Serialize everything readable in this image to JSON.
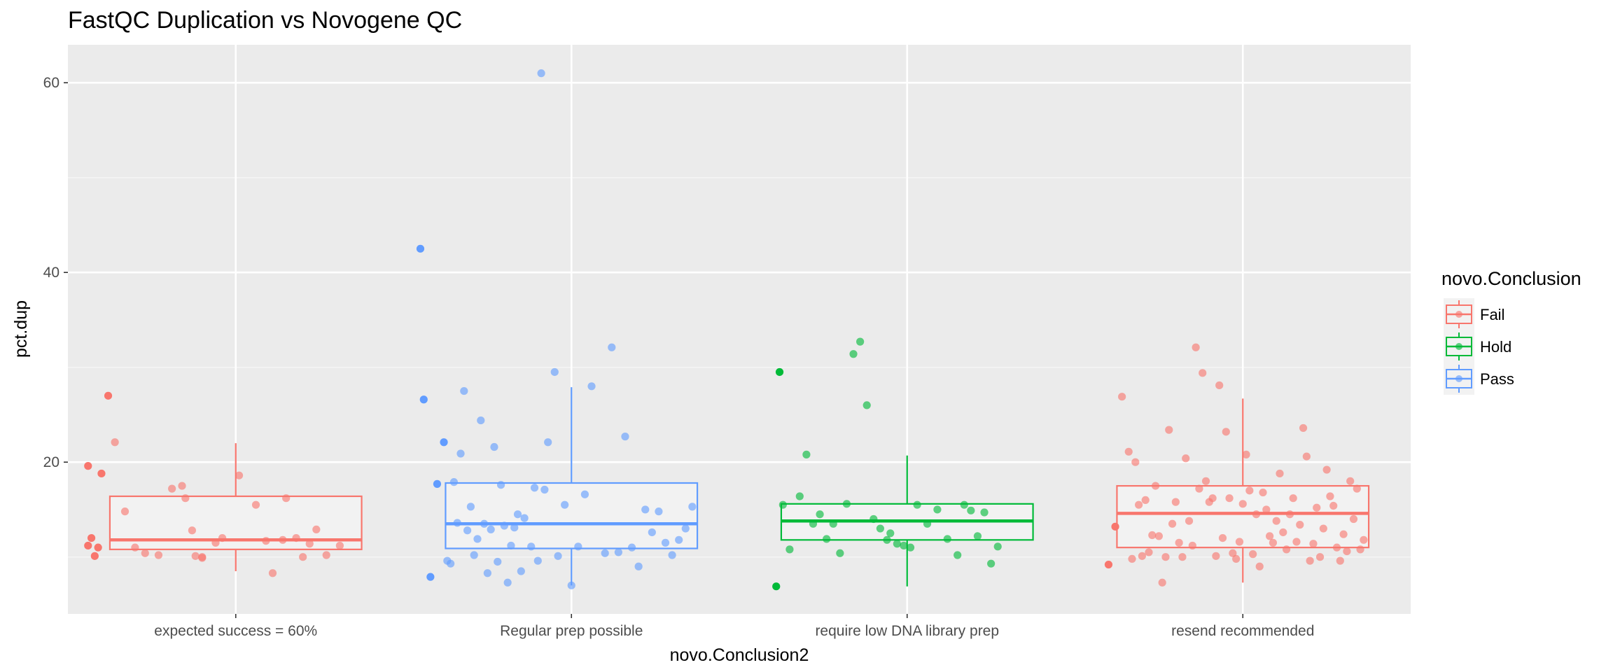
{
  "chart_data": {
    "type": "box",
    "title": "FastQC Duplication vs Novogene QC",
    "xlabel": "novo.Conclusion2",
    "ylabel": "pct.dup",
    "categories": [
      "expected success = 60%",
      "Regular prep possible",
      "require low DNA library prep",
      "resend recommended"
    ],
    "y_ticks": [
      20,
      40,
      60
    ],
    "ylim": [
      4,
      64
    ],
    "grid": true,
    "legend_position": "right",
    "legend": {
      "title": "novo.Conclusion",
      "entries": [
        {
          "name": "Fail",
          "color": "#F8766D"
        },
        {
          "name": "Hold",
          "color": "#00BA38"
        },
        {
          "name": "Pass",
          "color": "#619CFF"
        }
      ]
    },
    "boxes": [
      {
        "category": "expected success = 60%",
        "group": "Fail",
        "color": "#F8766D",
        "q1": 10.8,
        "median": 11.8,
        "q3": 16.4,
        "whisker_low": 8.5,
        "whisker_high": 22.0
      },
      {
        "category": "Regular prep possible",
        "group": "Pass",
        "color": "#619CFF",
        "q1": 10.9,
        "median": 13.5,
        "q3": 17.8,
        "whisker_low": 7.0,
        "whisker_high": 27.9
      },
      {
        "category": "require low DNA library prep",
        "group": "Hold",
        "color": "#00BA38",
        "q1": 11.8,
        "median": 13.8,
        "q3": 15.6,
        "whisker_low": 6.9,
        "whisker_high": 20.7
      },
      {
        "category": "resend recommended",
        "group": "Fail",
        "color": "#F8766D",
        "q1": 11.0,
        "median": 14.6,
        "q3": 17.5,
        "whisker_low": 7.3,
        "whisker_high": 26.7
      }
    ],
    "points": [
      {
        "category": "expected success = 60%",
        "group": "Fail",
        "color": "#F8766D",
        "jitter": [
          -0.44,
          -0.44,
          -0.43,
          -0.42,
          -0.41,
          -0.4,
          -0.38,
          -0.36,
          -0.33,
          -0.3,
          -0.27,
          -0.23,
          -0.19,
          -0.16,
          -0.15,
          -0.13,
          -0.12,
          -0.1,
          -0.1,
          -0.06,
          -0.04,
          0.01,
          0.06,
          0.09,
          0.11,
          0.14,
          0.15,
          0.18,
          0.2,
          0.22,
          0.24,
          0.27,
          0.31
        ],
        "y": [
          19.6,
          11.2,
          12.0,
          10.1,
          11.0,
          18.8,
          27.0,
          22.1,
          14.8,
          11.0,
          10.4,
          10.2,
          17.2,
          17.5,
          16.2,
          12.8,
          10.1,
          10.0,
          9.9,
          11.5,
          12.0,
          18.6,
          15.5,
          11.7,
          8.3,
          11.8,
          16.2,
          12.0,
          10.0,
          11.4,
          12.9,
          10.2,
          11.2
        ]
      },
      {
        "category": "Regular prep possible",
        "group": "Pass",
        "color": "#619CFF",
        "jitter": [
          -0.45,
          -0.44,
          -0.42,
          -0.4,
          -0.38,
          -0.37,
          -0.36,
          -0.35,
          -0.34,
          -0.33,
          -0.32,
          -0.31,
          -0.3,
          -0.29,
          -0.28,
          -0.27,
          -0.26,
          -0.25,
          -0.24,
          -0.23,
          -0.22,
          -0.21,
          -0.2,
          -0.19,
          -0.18,
          -0.17,
          -0.16,
          -0.15,
          -0.14,
          -0.12,
          -0.11,
          -0.1,
          -0.09,
          -0.08,
          -0.07,
          -0.05,
          -0.04,
          -0.02,
          0.0,
          0.02,
          0.04,
          0.06,
          0.1,
          0.12,
          0.14,
          0.16,
          0.18,
          0.2,
          0.22,
          0.24,
          0.26,
          0.28,
          0.3,
          0.32,
          0.34,
          0.36
        ],
        "y": [
          42.5,
          26.6,
          7.9,
          17.7,
          22.1,
          9.6,
          9.3,
          17.9,
          13.6,
          20.9,
          27.5,
          12.8,
          15.3,
          10.2,
          11.9,
          24.4,
          13.5,
          8.3,
          12.9,
          21.6,
          9.5,
          17.6,
          13.3,
          7.3,
          11.2,
          13.1,
          14.5,
          8.5,
          14.1,
          11.1,
          17.3,
          9.6,
          61.0,
          17.1,
          22.1,
          29.5,
          10.1,
          15.5,
          7.0,
          11.1,
          16.6,
          28.0,
          10.4,
          32.1,
          10.5,
          22.7,
          11.0,
          9.0,
          15.0,
          12.6,
          14.8,
          11.5,
          10.2,
          11.8,
          13.0,
          15.3
        ]
      },
      {
        "category": "require low DNA library prep",
        "group": "Hold",
        "color": "#00BA38",
        "jitter": [
          -0.39,
          -0.38,
          -0.37,
          -0.35,
          -0.32,
          -0.3,
          -0.28,
          -0.26,
          -0.24,
          -0.22,
          -0.2,
          -0.18,
          -0.16,
          -0.14,
          -0.12,
          -0.1,
          -0.08,
          -0.06,
          -0.05,
          -0.03,
          -0.01,
          0.01,
          0.03,
          0.06,
          0.09,
          0.12,
          0.15,
          0.17,
          0.19,
          0.21,
          0.23,
          0.25,
          0.27
        ],
        "y": [
          6.9,
          29.5,
          15.5,
          10.8,
          16.4,
          20.8,
          13.5,
          14.5,
          11.9,
          13.5,
          10.4,
          15.6,
          31.4,
          32.7,
          26.0,
          14.0,
          13.0,
          11.8,
          12.5,
          11.4,
          11.2,
          11.0,
          15.5,
          13.5,
          15.0,
          11.9,
          10.2,
          15.5,
          14.9,
          12.2,
          14.7,
          9.3,
          11.1
        ]
      },
      {
        "category": "resend recommended",
        "group": "Fail",
        "color": "#F8766D",
        "jitter": [
          -0.4,
          -0.38,
          -0.36,
          -0.34,
          -0.33,
          -0.32,
          -0.31,
          -0.3,
          -0.29,
          -0.28,
          -0.27,
          -0.26,
          -0.25,
          -0.24,
          -0.23,
          -0.22,
          -0.21,
          -0.2,
          -0.19,
          -0.18,
          -0.17,
          -0.16,
          -0.15,
          -0.14,
          -0.13,
          -0.12,
          -0.11,
          -0.1,
          -0.09,
          -0.08,
          -0.07,
          -0.06,
          -0.05,
          -0.04,
          -0.03,
          -0.02,
          -0.01,
          0.0,
          0.01,
          0.02,
          0.03,
          0.04,
          0.05,
          0.06,
          0.07,
          0.08,
          0.09,
          0.1,
          0.11,
          0.12,
          0.13,
          0.14,
          0.15,
          0.16,
          0.17,
          0.18,
          0.19,
          0.2,
          0.21,
          0.22,
          0.23,
          0.24,
          0.25,
          0.26,
          0.27,
          0.28,
          0.29,
          0.3,
          0.31,
          0.32,
          0.33,
          0.34,
          0.35,
          0.36
        ],
        "y": [
          9.2,
          13.2,
          26.9,
          21.1,
          9.8,
          20.0,
          15.5,
          10.1,
          16.0,
          10.5,
          12.3,
          17.5,
          12.2,
          7.3,
          10.0,
          23.4,
          13.5,
          15.8,
          11.5,
          10.0,
          20.4,
          13.8,
          11.2,
          32.1,
          17.2,
          29.4,
          18.0,
          15.8,
          16.2,
          10.1,
          28.1,
          12.0,
          23.2,
          16.2,
          10.4,
          9.8,
          11.6,
          15.6,
          20.8,
          17.0,
          10.3,
          14.5,
          9.0,
          16.8,
          15.0,
          12.2,
          11.5,
          13.8,
          18.8,
          12.6,
          10.8,
          14.5,
          16.2,
          11.6,
          13.4,
          23.6,
          20.6,
          9.6,
          11.4,
          15.2,
          10.0,
          13.0,
          19.2,
          16.4,
          15.4,
          11.0,
          9.6,
          12.4,
          10.6,
          18.0,
          14.0,
          17.2,
          10.8,
          11.8
        ]
      }
    ]
  }
}
